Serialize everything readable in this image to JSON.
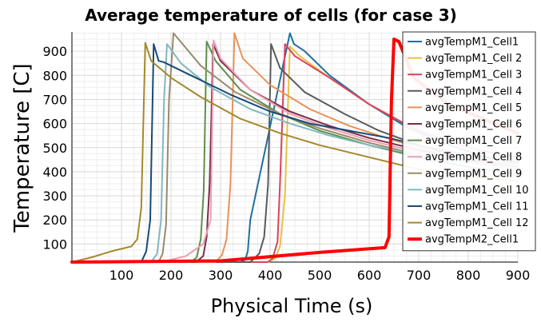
{
  "chart_data": {
    "type": "line",
    "title": "Average temperature of cells (for case 3)",
    "xlabel": "Physical Time (s)",
    "ylabel": "Temperature [C]",
    "xlim": [
      0,
      900
    ],
    "ylim": [
      25,
      980
    ],
    "xticks": [
      100,
      200,
      300,
      400,
      500,
      600,
      700,
      800,
      900
    ],
    "yticks": [
      100,
      200,
      300,
      400,
      500,
      600,
      700,
      800,
      900
    ],
    "grid": true,
    "legend_position": "top-right",
    "series": [
      {
        "name": "avgTempM1_Cell1",
        "color": "#1f6f9f",
        "width": 2,
        "x": [
          0,
          340,
          350,
          355,
          360,
          440,
          448,
          470,
          520,
          600,
          680,
          750,
          820,
          900
        ],
        "y": [
          25,
          25,
          35,
          70,
          200,
          975,
          930,
          900,
          800,
          680,
          580,
          520,
          470,
          430
        ]
      },
      {
        "name": "avgTempM1_Cell 2",
        "color": "#e6c142",
        "width": 2,
        "x": [
          0,
          395,
          410,
          420,
          430,
          440,
          460,
          520,
          600,
          680,
          750,
          820,
          900
        ],
        "y": [
          25,
          25,
          40,
          90,
          300,
          920,
          880,
          790,
          680,
          590,
          530,
          490,
          460
        ]
      },
      {
        "name": "avgTempM1_Cell 3",
        "color": "#d9435c",
        "width": 2,
        "x": [
          0,
          395,
          405,
          415,
          420,
          430,
          450,
          520,
          600,
          680,
          750,
          820,
          900
        ],
        "y": [
          25,
          25,
          40,
          110,
          350,
          930,
          880,
          790,
          680,
          590,
          530,
          490,
          460
        ]
      },
      {
        "name": "avgTempM1_Cell 4",
        "color": "#5a5a5a",
        "width": 2,
        "x": [
          0,
          360,
          378,
          388,
          396,
          402,
          420,
          470,
          550,
          620,
          700,
          800,
          900
        ],
        "y": [
          25,
          25,
          60,
          130,
          350,
          930,
          830,
          730,
          640,
          570,
          510,
          450,
          410
        ]
      },
      {
        "name": "avgTempM1_Cell 5",
        "color": "#e8915a",
        "width": 2,
        "x": [
          0,
          290,
          303,
          312,
          320,
          328,
          345,
          400,
          480,
          560,
          650,
          750,
          900
        ],
        "y": [
          25,
          25,
          55,
          120,
          350,
          975,
          870,
          760,
          660,
          590,
          530,
          470,
          430
        ]
      },
      {
        "name": "avgTempM1_Cell 6",
        "color": "#7a2c4a",
        "width": 2,
        "x": [
          0,
          250,
          265,
          272,
          278,
          285,
          300,
          360,
          440,
          520,
          600,
          700,
          800,
          900
        ],
        "y": [
          25,
          25,
          50,
          130,
          350,
          930,
          860,
          740,
          650,
          590,
          540,
          490,
          450,
          420
        ]
      },
      {
        "name": "avgTempM1_Cell 7",
        "color": "#5f8f4a",
        "width": 2,
        "x": [
          0,
          240,
          252,
          260,
          266,
          272,
          290,
          340,
          420,
          500,
          600,
          700,
          800,
          900
        ],
        "y": [
          25,
          25,
          45,
          120,
          320,
          940,
          860,
          740,
          640,
          570,
          510,
          460,
          420,
          390
        ]
      },
      {
        "name": "avgTempM1_Cell 8",
        "color": "#ec9fb0",
        "width": 2,
        "x": [
          0,
          180,
          230,
          265,
          280,
          286,
          300,
          360,
          440,
          520,
          600,
          700,
          800,
          900
        ],
        "y": [
          25,
          25,
          50,
          100,
          200,
          945,
          870,
          740,
          640,
          580,
          530,
          480,
          440,
          410
        ]
      },
      {
        "name": "avgTempM1_Cell 9",
        "color": "#9a8a6a",
        "width": 2,
        "x": [
          0,
          175,
          183,
          190,
          196,
          205,
          260,
          330,
          420,
          500,
          600,
          700,
          800,
          900
        ],
        "y": [
          25,
          25,
          60,
          180,
          700,
          975,
          840,
          730,
          640,
          580,
          520,
          470,
          440,
          420
        ]
      },
      {
        "name": "avgTempM1_Cell 10",
        "color": "#82b8c0",
        "width": 2,
        "x": [
          0,
          160,
          172,
          180,
          186,
          192,
          220,
          280,
          360,
          440,
          520,
          600,
          700,
          800,
          900
        ],
        "y": [
          25,
          25,
          60,
          200,
          700,
          930,
          850,
          750,
          660,
          600,
          550,
          510,
          470,
          440,
          415
        ]
      },
      {
        "name": "avgTempM1_Cell 11",
        "color": "#174a75",
        "width": 2,
        "x": [
          0,
          140,
          150,
          158,
          165,
          175,
          185,
          240,
          320,
          400,
          480,
          560,
          640,
          720,
          800,
          900
        ],
        "y": [
          25,
          25,
          70,
          200,
          930,
          860,
          855,
          800,
          720,
          650,
          600,
          570,
          540,
          500,
          470,
          440
        ]
      },
      {
        "name": "avgTempM1_Cell 12",
        "color": "#a5882a",
        "width": 2,
        "x": [
          0,
          40,
          80,
          120,
          132,
          140,
          148,
          160,
          200,
          260,
          340,
          420,
          500,
          600,
          700,
          800,
          900
        ],
        "y": [
          25,
          45,
          70,
          90,
          120,
          250,
          935,
          860,
          790,
          710,
          620,
          560,
          510,
          460,
          410,
          380,
          360
        ]
      },
      {
        "name": "avgTempM2_Cell1",
        "color": "#ff0000",
        "width": 4,
        "x": [
          0,
          300,
          500,
          632,
          640,
          645,
          650,
          660,
          690,
          760,
          900
        ],
        "y": [
          25,
          30,
          65,
          85,
          130,
          700,
          950,
          940,
          790,
          680,
          560
        ]
      }
    ]
  }
}
